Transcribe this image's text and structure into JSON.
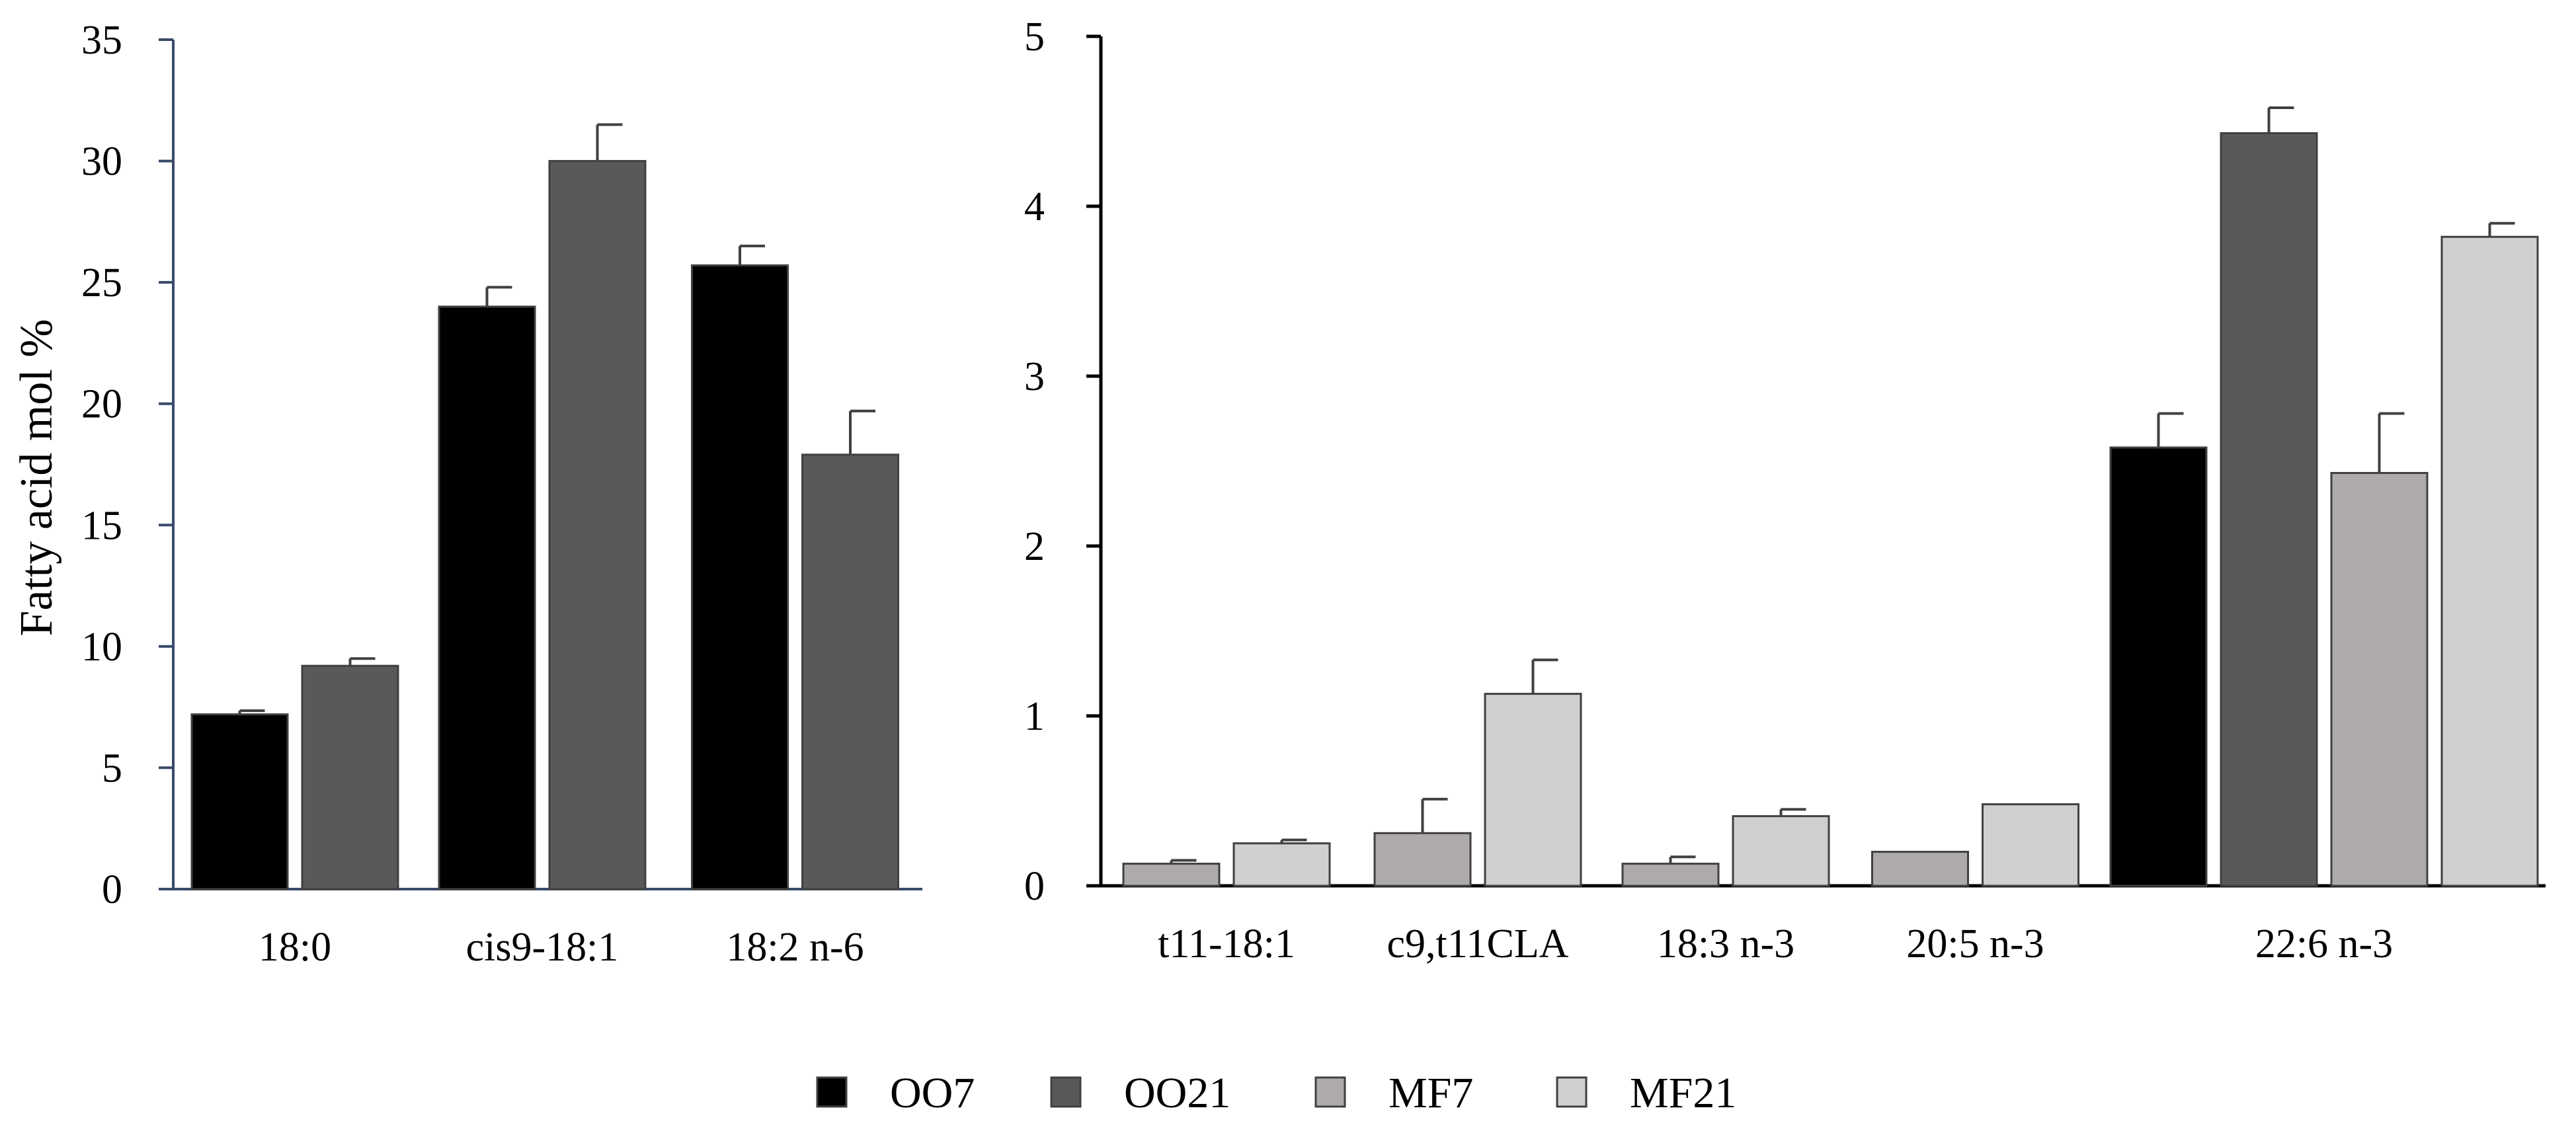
{
  "series_colors": {
    "OO7": "#000000",
    "OO21": "#595959",
    "MF7": "#aeaaaa",
    "MF21": "#d0cece"
  },
  "legend": {
    "items": [
      {
        "name": "OO7",
        "color": "#000000"
      },
      {
        "name": "OO21",
        "color": "#595959"
      },
      {
        "name": "MF7",
        "color": "#aeaaaa"
      },
      {
        "name": "MF21",
        "color": "#d0cece"
      }
    ],
    "placement": "bottom-center"
  },
  "chart_data": [
    {
      "type": "bar",
      "title": "",
      "xlabel": "",
      "ylabel": "Fatty acid mol %",
      "ylim": [
        0,
        35
      ],
      "yticks": [
        "0",
        "5",
        "10",
        "15",
        "20",
        "25",
        "30",
        "35"
      ],
      "categories": [
        "18:0",
        "cis9-18:1",
        "18:2 n-6"
      ],
      "series": [
        {
          "name": "OO7",
          "values": [
            7.2,
            24.0,
            25.7
          ],
          "errors": [
            0.15,
            0.8,
            0.8
          ]
        },
        {
          "name": "OO21",
          "values": [
            9.2,
            30.0,
            17.9
          ],
          "errors": [
            0.3,
            1.5,
            1.8
          ]
        }
      ]
    },
    {
      "type": "bar",
      "title": "",
      "xlabel": "",
      "ylabel": "",
      "ylim": [
        0,
        5
      ],
      "yticks": [
        "0",
        "1",
        "2",
        "3",
        "4",
        "5"
      ],
      "categories": [
        "t11-18:1",
        "c9,t11CLA",
        "18:3 n-3",
        "20:5 n-3",
        "22:6 n-3"
      ],
      "series": [
        {
          "name": "OO7",
          "values": [
            null,
            null,
            null,
            null,
            2.58
          ],
          "errors": [
            null,
            null,
            null,
            null,
            0.2
          ]
        },
        {
          "name": "OO21",
          "values": [
            null,
            null,
            null,
            null,
            4.43
          ],
          "errors": [
            null,
            null,
            null,
            null,
            0.15
          ]
        },
        {
          "name": "MF7",
          "values": [
            0.13,
            0.31,
            0.13,
            0.2,
            2.43
          ],
          "errors": [
            0.02,
            0.2,
            0.04,
            0.0,
            0.35
          ]
        },
        {
          "name": "MF21",
          "values": [
            0.25,
            1.13,
            0.41,
            0.48,
            3.82
          ],
          "errors": [
            0.02,
            0.2,
            0.04,
            0.0,
            0.08
          ]
        }
      ]
    }
  ]
}
